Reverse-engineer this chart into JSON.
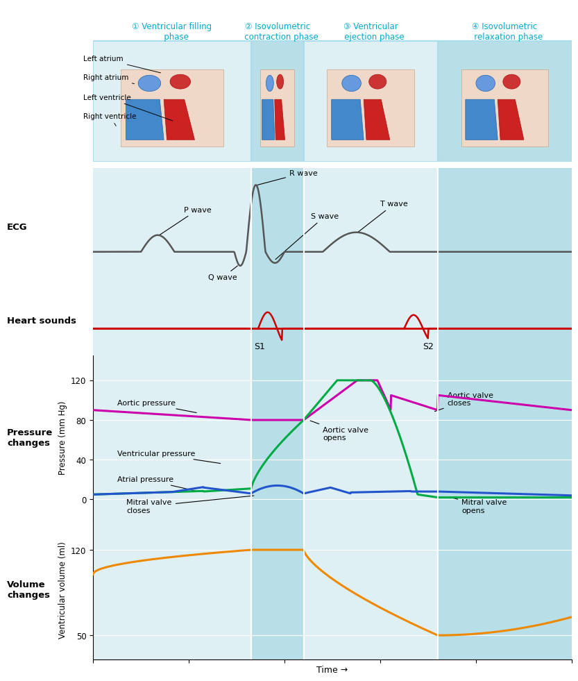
{
  "bg_color_main": "#dff0f5",
  "bg_color_dark": "#b8dfe8",
  "bg_color_white": "#ffffff",
  "phase_labels": [
    "① Ventricular filling\n   phase",
    "② Isovolumetric\n   contraction phase",
    "③ Ventricular\n   ejection phase",
    "④ Isovolumetric\n   relaxation phase"
  ],
  "phase_label_color": "#00aacc",
  "ecg_color": "#555555",
  "heart_sound_color": "#cc0000",
  "aortic_pressure_color": "#cc00aa",
  "ventricular_pressure_color": "#00aa44",
  "atrial_pressure_color": "#2255cc",
  "volume_color": "#ee8800",
  "section_label_color": "#000000",
  "section_labels": [
    "ECG",
    "Heart sounds",
    "Pressure\nchanges",
    "Volume\nchanges"
  ],
  "pressure_ylabel": "Pressure (mm Hg)",
  "volume_ylabel": "Ventricular volume (ml)",
  "xlabel": "Time →",
  "pressure_yticks": [
    0,
    40,
    80,
    120
  ],
  "volume_yticks": [
    50,
    120
  ],
  "phase_boundaries": [
    0.0,
    0.33,
    0.44,
    0.72,
    1.0
  ],
  "shade_phases": [
    1,
    3
  ],
  "heart_labels_left": [
    "Left atrium",
    "Right atrium",
    "Left ventricle",
    "Right ventricle"
  ]
}
